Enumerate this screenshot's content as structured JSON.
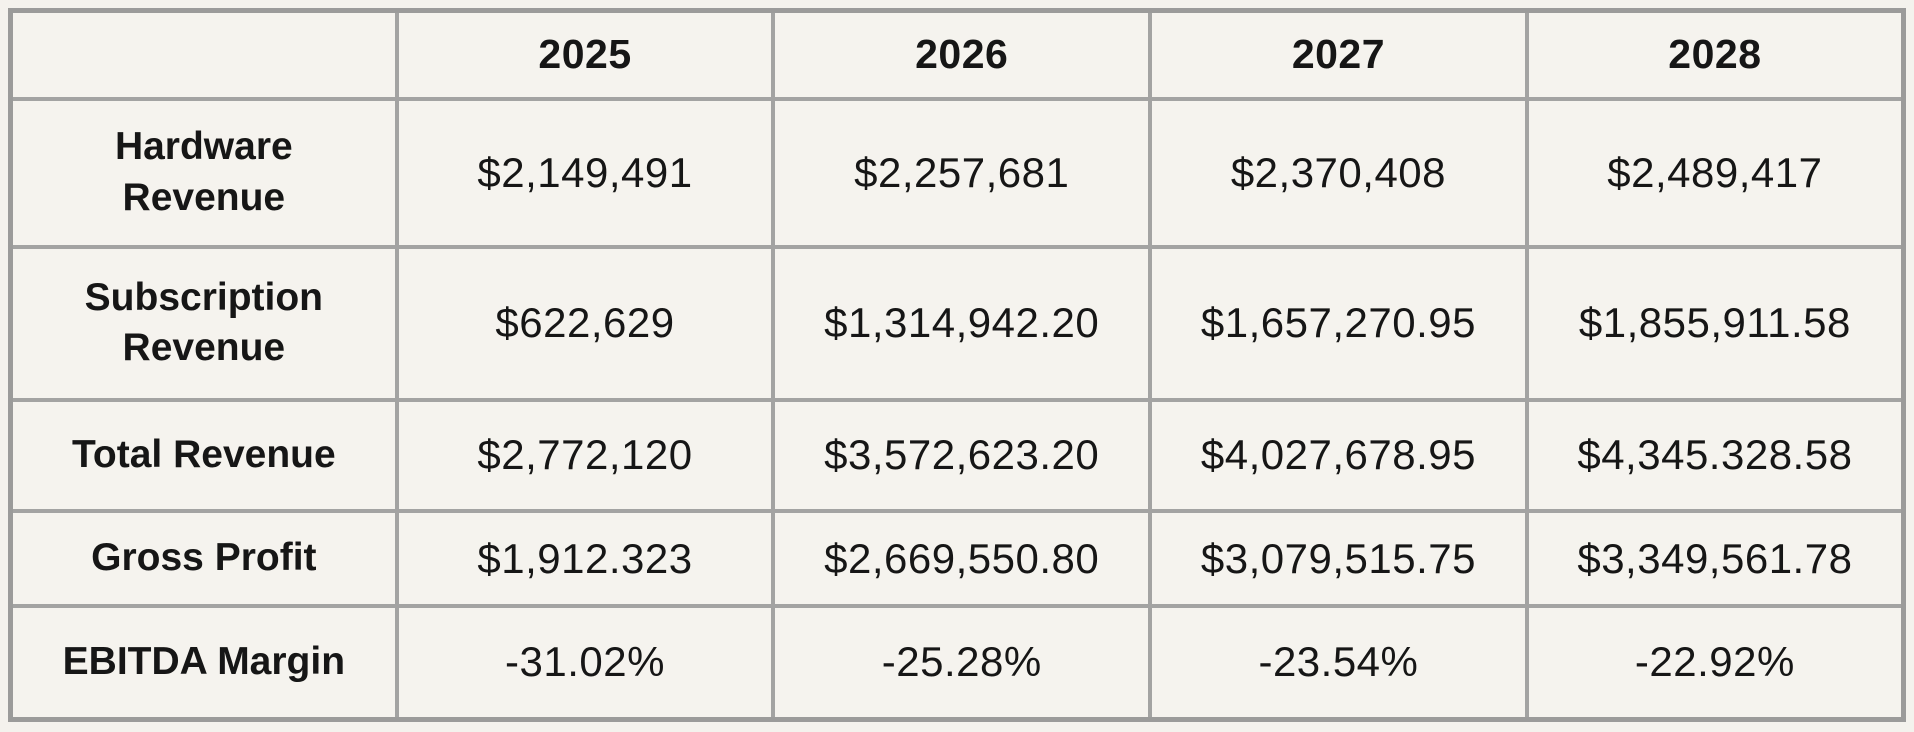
{
  "colors": {
    "page_background": "#f4f2ed",
    "cell_background": "#f5f3ee",
    "grid_border": "#a3a3a2",
    "outer_border": "#9b9b9a",
    "text": "#161616"
  },
  "chart_data": {
    "type": "table",
    "columns": [
      "",
      "2025",
      "2026",
      "2027",
      "2028"
    ],
    "rows": [
      {
        "label": "Hardware Revenue",
        "values": [
          "$2,149,491",
          "$2,257,681",
          "$2,370,408",
          "$2,489,417"
        ]
      },
      {
        "label": "Subscription Revenue",
        "values": [
          "$622,629",
          "$1,314,942.20",
          "$1,657,270.95",
          "$1,855,911.58"
        ]
      },
      {
        "label": "Total Revenue",
        "values": [
          "$2,772,120",
          "$3,572,623.20",
          "$4,027,678.95",
          "$4,345.328.58"
        ]
      },
      {
        "label": "Gross Profit",
        "values": [
          "$1,912.323",
          "$2,669,550.80",
          "$3,079,515.75",
          "$3,349,561.78"
        ]
      },
      {
        "label": "EBITDA Margin",
        "values": [
          "-31.02%",
          "-25.28%",
          "-23.54%",
          "-22.92%"
        ]
      }
    ]
  }
}
